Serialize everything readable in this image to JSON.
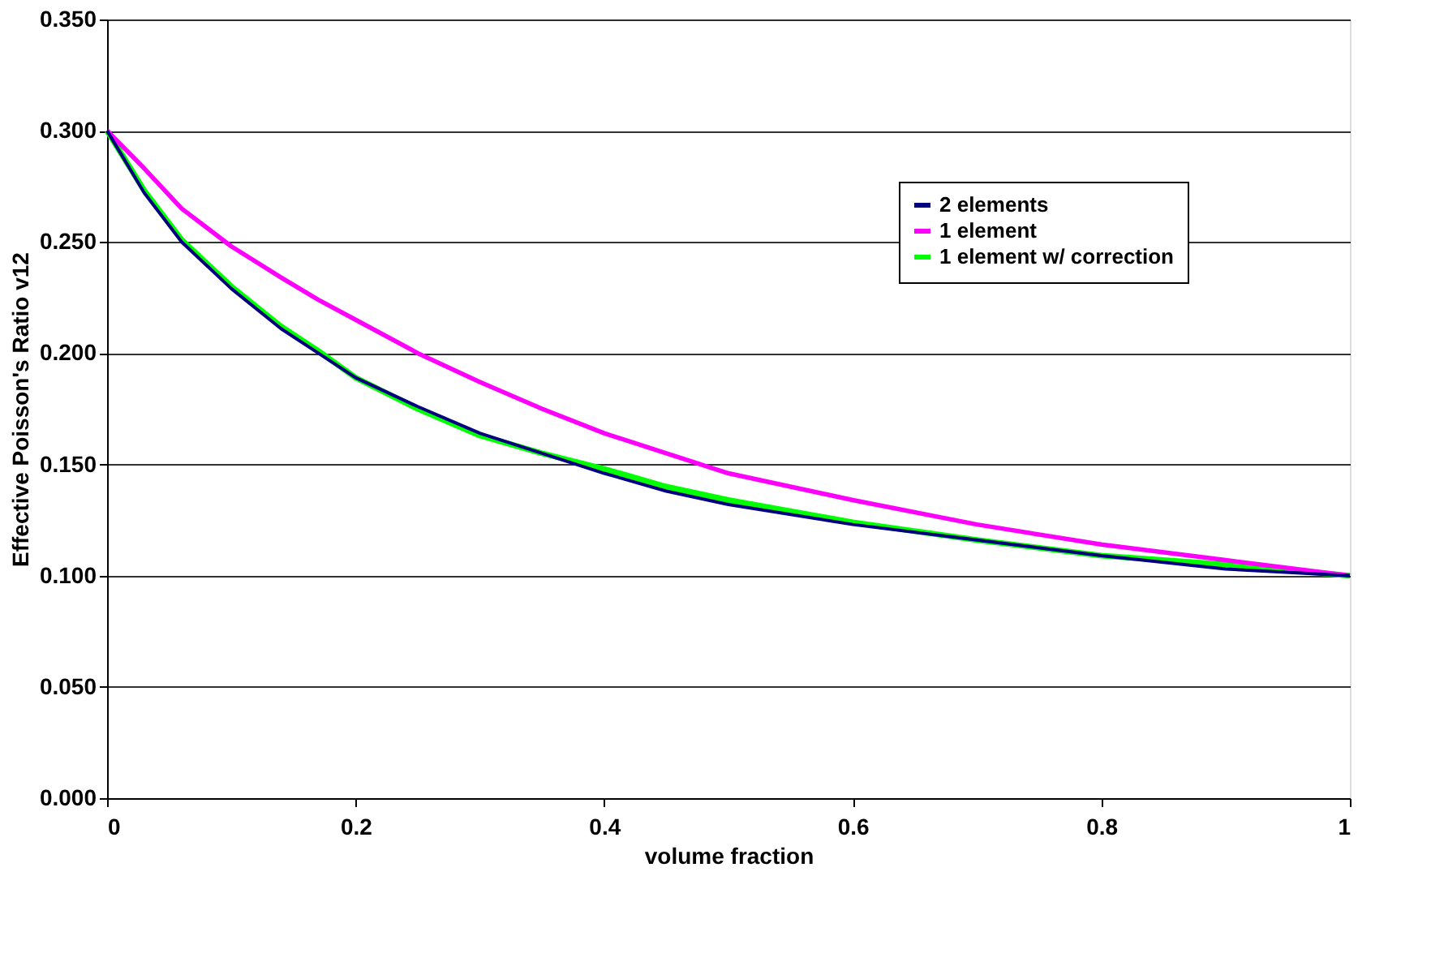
{
  "chart_data": {
    "type": "line",
    "xlabel": "volume fraction",
    "ylabel": "Effective Poisson's Ratio v12",
    "x": [
      0,
      0.03,
      0.06,
      0.1,
      0.14,
      0.17,
      0.2,
      0.25,
      0.3,
      0.35,
      0.4,
      0.45,
      0.5,
      0.6,
      0.7,
      0.8,
      0.9,
      1
    ],
    "series": [
      {
        "name": "2 elements",
        "color": "#000080",
        "values": [
          0.3,
          0.272,
          0.25,
          0.229,
          0.211,
          0.2,
          0.189,
          0.176,
          0.164,
          0.155,
          0.146,
          0.138,
          0.132,
          0.123,
          0.116,
          0.109,
          0.103,
          0.1
        ]
      },
      {
        "name": "1 element",
        "color": "#ff00ff",
        "values": [
          0.3,
          0.283,
          0.265,
          0.248,
          0.234,
          0.224,
          0.215,
          0.2,
          0.187,
          0.175,
          0.164,
          0.155,
          0.146,
          0.134,
          0.123,
          0.114,
          0.107,
          0.1
        ]
      },
      {
        "name": "1 element w/ correction",
        "color": "#00ff00",
        "values": [
          0.3,
          0.273,
          0.251,
          0.23,
          0.212,
          0.201,
          0.189,
          0.175,
          0.163,
          0.155,
          0.148,
          0.14,
          0.134,
          0.124,
          0.116,
          0.109,
          0.105,
          0.1
        ]
      }
    ],
    "xlim": [
      0,
      1
    ],
    "xticks": [
      0,
      0.2,
      0.4,
      0.6,
      0.8,
      1
    ],
    "ylim": [
      0,
      0.35
    ],
    "yticks": [
      {
        "value": 0,
        "label": "0.000"
      },
      {
        "value": 0.05,
        "label": "0.050"
      },
      {
        "value": 0.1,
        "label": "0.100"
      },
      {
        "value": 0.15,
        "label": "0.150"
      },
      {
        "value": 0.2,
        "label": "0.200"
      },
      {
        "value": 0.25,
        "label": "0.250"
      },
      {
        "value": 0.3,
        "label": "0.300"
      },
      {
        "value": 0.35,
        "label": "0.350"
      }
    ],
    "grid": "y",
    "legend": "top right",
    "marker": "none",
    "line_style": "solid"
  }
}
